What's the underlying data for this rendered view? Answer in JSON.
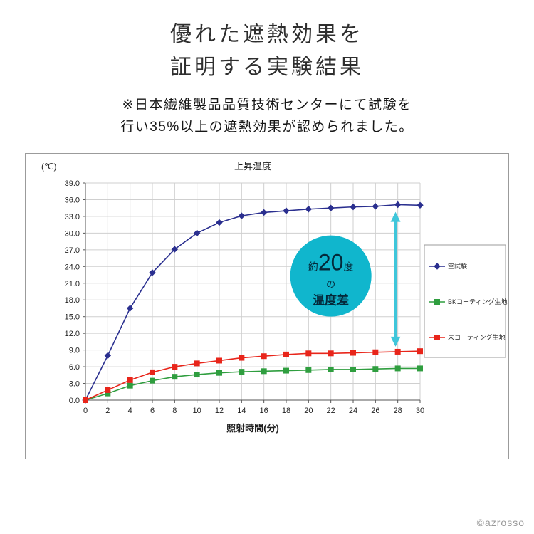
{
  "header": {
    "title_line1": "優れた遮熱効果を",
    "title_line2": "証明する実験結果",
    "note_line1": "※日本繊維製品品質技術センターにて試験を",
    "note_line2": "行い35%以上の遮熱効果が認められました。"
  },
  "chart_data": {
    "type": "line",
    "title": "上昇温度",
    "y_unit_label": "(℃)",
    "xlabel": "照射時間(分)",
    "x": [
      0,
      2,
      4,
      6,
      8,
      10,
      12,
      14,
      16,
      18,
      20,
      22,
      24,
      26,
      28,
      30
    ],
    "ylim": [
      0,
      39
    ],
    "ytick_step": 3,
    "grid": true,
    "legend_position": "right",
    "series": [
      {
        "id": "blank-test",
        "name": "空試験",
        "color": "#2a2f8f",
        "marker": "diamond",
        "values": [
          0.0,
          8.0,
          16.5,
          22.9,
          27.1,
          30.0,
          31.9,
          33.1,
          33.7,
          34.0,
          34.3,
          34.5,
          34.7,
          34.8,
          35.1,
          35.0
        ]
      },
      {
        "id": "bk-coated-fabric",
        "name": "BKコーティング生地",
        "color": "#2f9e3f",
        "marker": "square",
        "values": [
          0.0,
          1.2,
          2.6,
          3.5,
          4.2,
          4.6,
          4.9,
          5.1,
          5.2,
          5.3,
          5.4,
          5.5,
          5.5,
          5.6,
          5.7,
          5.7
        ]
      },
      {
        "id": "uncoated-fabric",
        "name": "未コーティング生地",
        "color": "#e8251a",
        "marker": "square",
        "values": [
          0.0,
          1.8,
          3.6,
          5.0,
          6.0,
          6.6,
          7.1,
          7.6,
          7.9,
          8.2,
          8.4,
          8.4,
          8.5,
          8.6,
          8.7,
          8.8
        ]
      }
    ],
    "annotations": {
      "circle": {
        "x": 22,
        "y": 22.3,
        "radius": 57,
        "fill": "#10b6cd",
        "text_color": "#04293a",
        "line1_small_prefix": "約",
        "line1_big": "20",
        "line1_small_suffix": "度",
        "line2": "の",
        "line3": "温度差"
      },
      "arrow": {
        "x": 27.8,
        "y_top": 33.8,
        "y_bottom": 9.6,
        "color": "#3fc6da"
      }
    }
  },
  "footer": {
    "credit": "©azrosso"
  }
}
